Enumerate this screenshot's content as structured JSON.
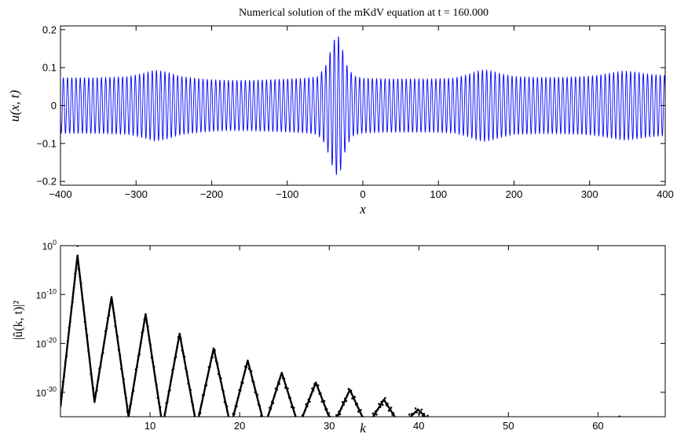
{
  "chart_data": [
    {
      "type": "line",
      "title": "Numerical solution of the mKdV equation at t = 160.000",
      "xlabel": "x",
      "ylabel": "u(x, t)",
      "xlim": [
        -400,
        400
      ],
      "ylim": [
        -0.21,
        0.21
      ],
      "x_ticks": [
        "−400",
        "−300",
        "−200",
        "−100",
        "0",
        "100",
        "200",
        "300",
        "400"
      ],
      "y_ticks": [
        "0.2",
        "0.1",
        "0",
        "−0.1",
        "−0.2"
      ],
      "grid": false,
      "legend": "none",
      "line_color": "#0000ff",
      "carrier_period": 5.6,
      "envelope": {
        "x": [
          -400,
          -350,
          -310,
          -290,
          -275,
          -260,
          -240,
          -210,
          -180,
          -150,
          -120,
          -95,
          -75,
          -60,
          -50,
          -45,
          -40,
          -37,
          -34,
          -31,
          -28,
          -25,
          -20,
          -12,
          0,
          30,
          60,
          90,
          120,
          140,
          150,
          160,
          170,
          180,
          200,
          230,
          260,
          290,
          310,
          330,
          345,
          360,
          380,
          400
        ],
        "amplitude": [
          0.073,
          0.073,
          0.076,
          0.085,
          0.093,
          0.088,
          0.076,
          0.069,
          0.066,
          0.066,
          0.068,
          0.07,
          0.072,
          0.076,
          0.1,
          0.13,
          0.16,
          0.178,
          0.185,
          0.18,
          0.16,
          0.13,
          0.1,
          0.078,
          0.072,
          0.07,
          0.07,
          0.07,
          0.072,
          0.082,
          0.09,
          0.094,
          0.091,
          0.085,
          0.076,
          0.074,
          0.074,
          0.076,
          0.079,
          0.086,
          0.091,
          0.088,
          0.082,
          0.079
        ]
      }
    },
    {
      "type": "scatter",
      "xlabel": "k",
      "ylabel": "|û(k, t)|²",
      "xlim": [
        0,
        67.5
      ],
      "ylim": [
        1e-35,
        1
      ],
      "yscale": "log",
      "x_ticks": [
        "10",
        "20",
        "30",
        "40",
        "50",
        "60"
      ],
      "y_ticks": [
        "10^0",
        "10^-10",
        "10^-20",
        "10^-30"
      ],
      "grid": false,
      "legend": "none",
      "marker_color": "#000000",
      "peaks": [
        {
          "k": 1.9,
          "log10": -2
        },
        {
          "k": 5.7,
          "log10": -10.5
        },
        {
          "k": 9.5,
          "log10": -14
        },
        {
          "k": 13.3,
          "log10": -18
        },
        {
          "k": 17.1,
          "log10": -21
        },
        {
          "k": 20.9,
          "log10": -23.5
        },
        {
          "k": 24.7,
          "log10": -26
        },
        {
          "k": 28.5,
          "log10": -28
        },
        {
          "k": 32.3,
          "log10": -29.5
        },
        {
          "k": 36.1,
          "log10": -31.5
        },
        {
          "k": 39.9,
          "log10": -33.5
        },
        {
          "k": 43.4,
          "log10": -35.5
        }
      ],
      "troughs": [
        {
          "k": 0,
          "log10": -33
        },
        {
          "k": 3.8,
          "log10": -32
        },
        {
          "k": 7.6,
          "log10": -35
        },
        {
          "k": 11.4,
          "log10": -37
        },
        {
          "k": 15.2,
          "log10": -37
        },
        {
          "k": 19.0,
          "log10": -37
        },
        {
          "k": 22.8,
          "log10": -37
        },
        {
          "k": 26.6,
          "log10": -37
        },
        {
          "k": 30.4,
          "log10": -37
        },
        {
          "k": 34.2,
          "log10": -37
        },
        {
          "k": 38.0,
          "log10": -37
        },
        {
          "k": 41.8,
          "log10": -37
        },
        {
          "k": 45.0,
          "log10": -37
        }
      ],
      "outliers": [
        {
          "k": 1.9,
          "log10": 0
        },
        {
          "k": 62.4,
          "log10": -35
        }
      ]
    }
  ]
}
